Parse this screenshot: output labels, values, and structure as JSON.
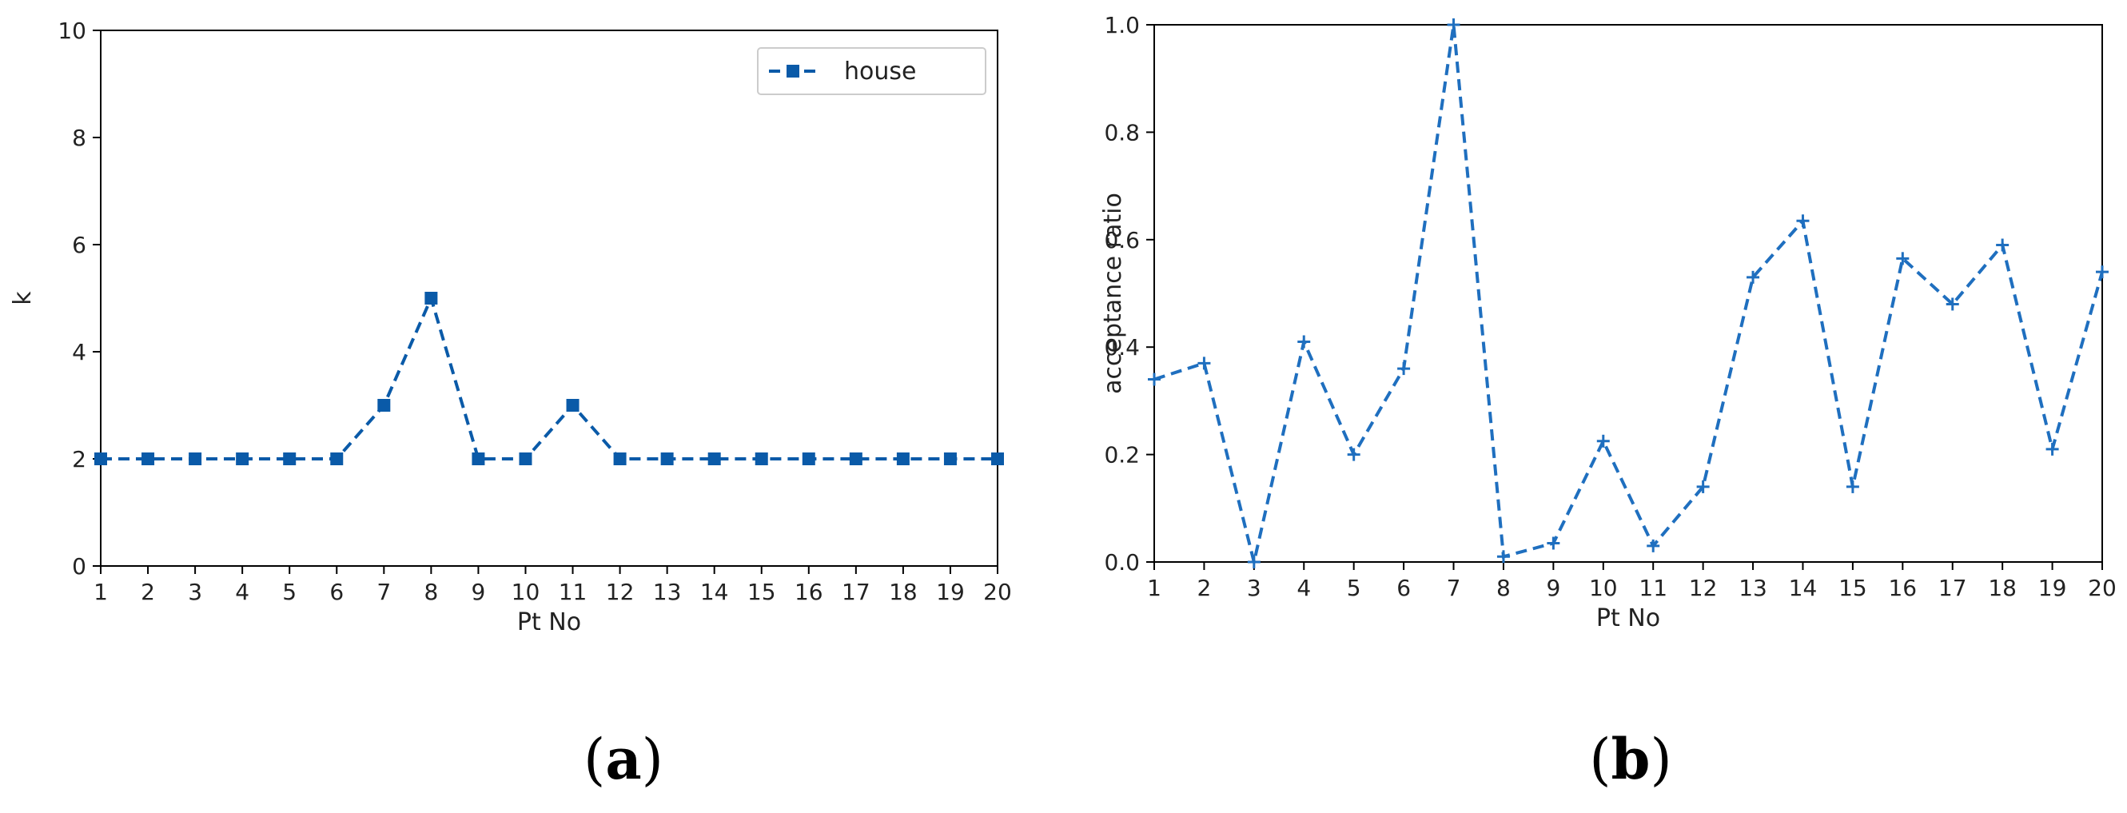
{
  "chart_data": [
    {
      "type": "line",
      "panel_label": "a",
      "xlabel": "Pt No",
      "ylabel": "k",
      "xlim": [
        1,
        20
      ],
      "ylim": [
        0,
        10
      ],
      "xticks": [
        1,
        2,
        3,
        4,
        5,
        6,
        7,
        8,
        9,
        10,
        11,
        12,
        13,
        14,
        15,
        16,
        17,
        18,
        19,
        20
      ],
      "yticks": [
        0,
        2,
        4,
        6,
        8,
        10
      ],
      "grid": false,
      "legend": "top-right",
      "series": [
        {
          "name": "house",
          "color": "#0a5aa8",
          "marker": "square",
          "line_style": "dashed",
          "x": [
            1,
            2,
            3,
            4,
            5,
            6,
            7,
            8,
            9,
            10,
            11,
            12,
            13,
            14,
            15,
            16,
            17,
            18,
            19,
            20
          ],
          "y": [
            2,
            2,
            2,
            2,
            2,
            2,
            3,
            5,
            2,
            2,
            3,
            2,
            2,
            2,
            2,
            2,
            2,
            2,
            2,
            2
          ]
        }
      ]
    },
    {
      "type": "line",
      "panel_label": "b",
      "xlabel": "Pt No",
      "ylabel": "acceptance ratio",
      "xlim": [
        1,
        20
      ],
      "ylim": [
        0.0,
        1.0
      ],
      "xticks": [
        1,
        2,
        3,
        4,
        5,
        6,
        7,
        8,
        9,
        10,
        11,
        12,
        13,
        14,
        15,
        16,
        17,
        18,
        19,
        20
      ],
      "yticks": [
        "0.0",
        "0.2",
        "0.4",
        "0.6",
        "0.8",
        "1.0"
      ],
      "grid": false,
      "series": [
        {
          "color": "#1f6fbf",
          "marker": "plus",
          "line_style": "dashed",
          "x": [
            1,
            2,
            3,
            4,
            5,
            6,
            7,
            8,
            9,
            10,
            11,
            12,
            13,
            14,
            15,
            16,
            17,
            18,
            19,
            20
          ],
          "y": [
            0.34,
            0.37,
            0.0,
            0.41,
            0.2,
            0.36,
            1.0,
            0.01,
            0.035,
            0.225,
            0.03,
            0.14,
            0.53,
            0.635,
            0.14,
            0.565,
            0.48,
            0.59,
            0.21,
            0.54
          ]
        }
      ]
    }
  ]
}
